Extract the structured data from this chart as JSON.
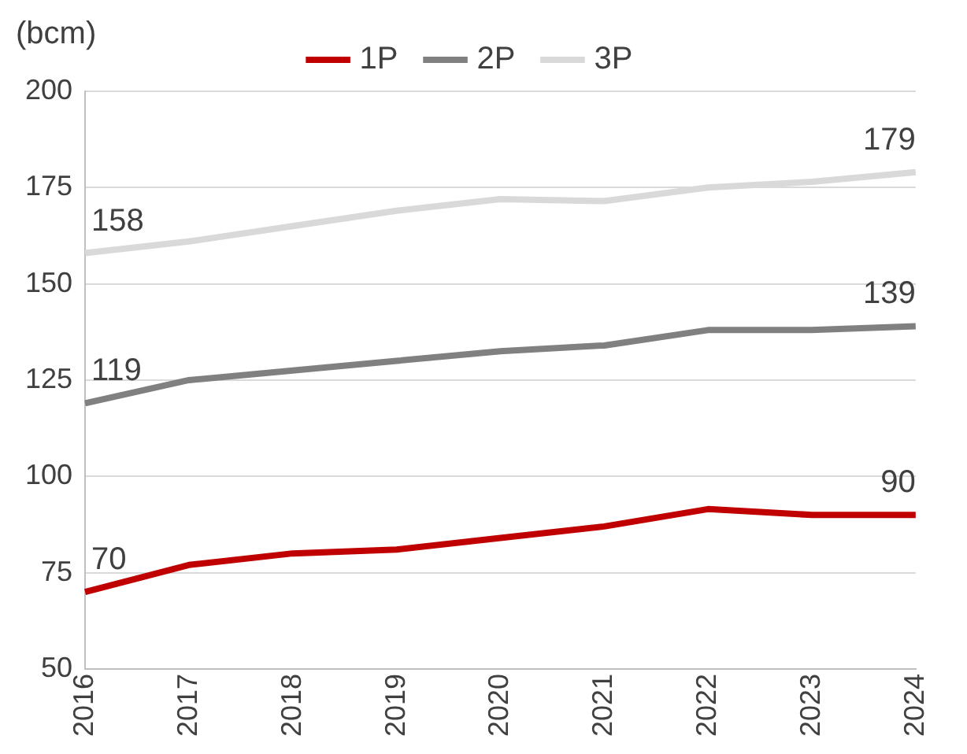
{
  "chart_data": {
    "type": "line",
    "ylabel": "(bcm)",
    "categories": [
      "2016",
      "2017",
      "2018",
      "2019",
      "2020",
      "2021",
      "2022",
      "2023",
      "2024"
    ],
    "series": [
      {
        "name": "1P",
        "color": "#c00000",
        "values": [
          70,
          77,
          80,
          81,
          84,
          87,
          91.5,
          90,
          90
        ]
      },
      {
        "name": "2P",
        "color": "#808080",
        "values": [
          119,
          125,
          127.5,
          130,
          132.5,
          134,
          138,
          138,
          139
        ]
      },
      {
        "name": "3P",
        "color": "#d9d9d9",
        "values": [
          158,
          161,
          165,
          169,
          172,
          171.5,
          175,
          176.5,
          179
        ]
      }
    ],
    "ylim": [
      50,
      200
    ],
    "yticks": [
      50,
      75,
      100,
      125,
      150,
      175,
      200
    ],
    "grid": "y",
    "legend": "top",
    "marker": "none",
    "line_style": "solid",
    "annotations": [
      {
        "text": "70",
        "x": "2016",
        "y": 70
      },
      {
        "text": "90",
        "x": "2024",
        "y": 90
      },
      {
        "text": "119",
        "x": "2016",
        "y": 119
      },
      {
        "text": "139",
        "x": "2024",
        "y": 139
      },
      {
        "text": "158",
        "x": "2016",
        "y": 158
      },
      {
        "text": "179",
        "x": "2024",
        "y": 179
      }
    ]
  }
}
